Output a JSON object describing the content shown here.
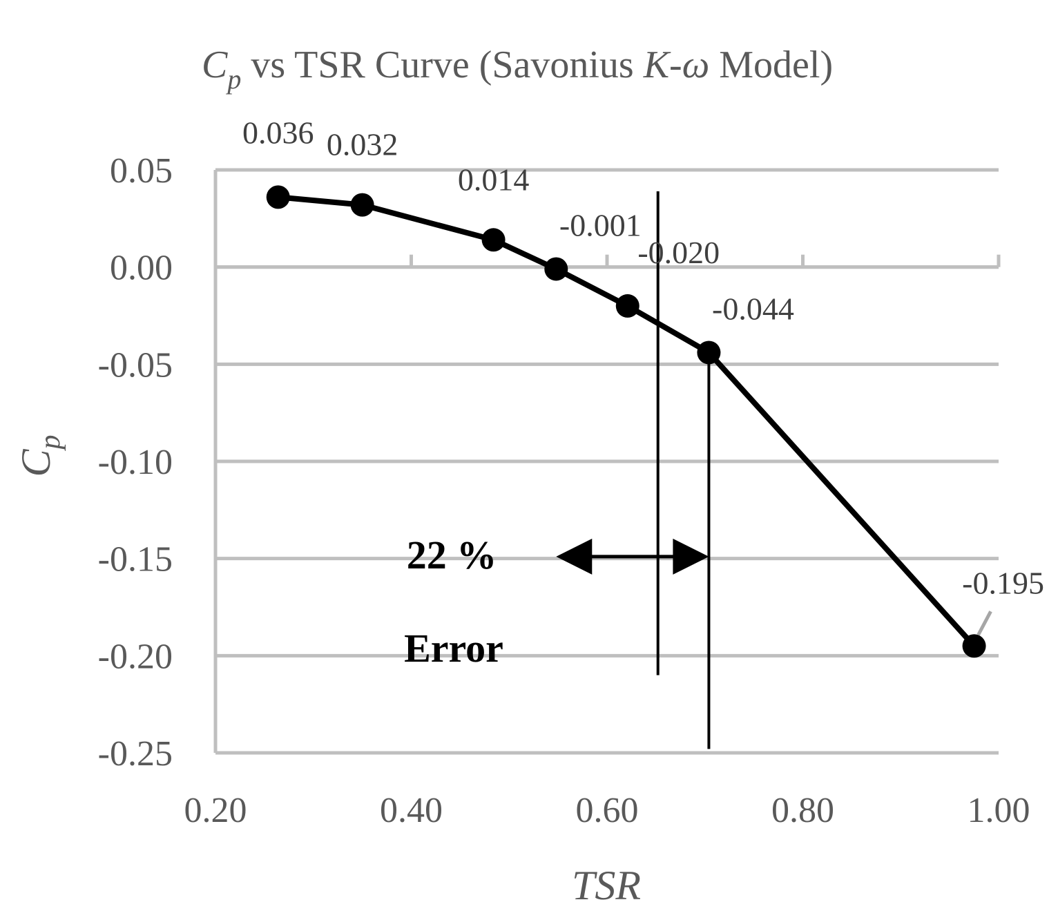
{
  "chart_data": {
    "type": "line",
    "title": {
      "cp_main": "C",
      "cp_sub": "p",
      "middle": " vs TSR Curve (Savonius ",
      "model_italic": "K-ω",
      "end": " Model)"
    },
    "xlabel": "TSR",
    "ylabel": {
      "main": "C",
      "sub": "p"
    },
    "xlim": [
      0.2,
      1.0
    ],
    "ylim": [
      -0.25,
      0.05
    ],
    "x_ticks": [
      0.2,
      0.4,
      0.6,
      0.8,
      1.0
    ],
    "x_tick_labels": [
      "0.20",
      "0.40",
      "0.60",
      "0.80",
      "1.00"
    ],
    "y_ticks": [
      0.05,
      0.0,
      -0.05,
      -0.1,
      -0.15,
      -0.2,
      -0.25
    ],
    "y_tick_labels": [
      "0.05",
      "0.00",
      "-0.05",
      "-0.10",
      "-0.15",
      "-0.20",
      "-0.25"
    ],
    "grid": "horizontal",
    "series": [
      {
        "x": [
          0.264,
          0.35,
          0.484,
          0.548,
          0.621,
          0.704,
          0.975
        ],
        "values": [
          0.036,
          0.032,
          0.014,
          -0.001,
          -0.02,
          -0.044,
          -0.195
        ],
        "data_labels": [
          "0.036",
          "0.032",
          "0.014",
          "-0.001",
          "-0.020",
          "-0.044",
          "-0.195"
        ],
        "color": "#000000"
      }
    ],
    "annotations": {
      "vertical_lines": [
        {
          "x": 0.652,
          "y_top": 0.039,
          "y_bottom": -0.21
        },
        {
          "x": 0.704,
          "y_top": -0.044,
          "y_bottom": -0.248
        }
      ],
      "arrow": {
        "x_from": 0.548,
        "x_to": 0.704,
        "y": -0.149
      },
      "error_text_line1": "22 %",
      "error_text_line2": "Error"
    }
  }
}
